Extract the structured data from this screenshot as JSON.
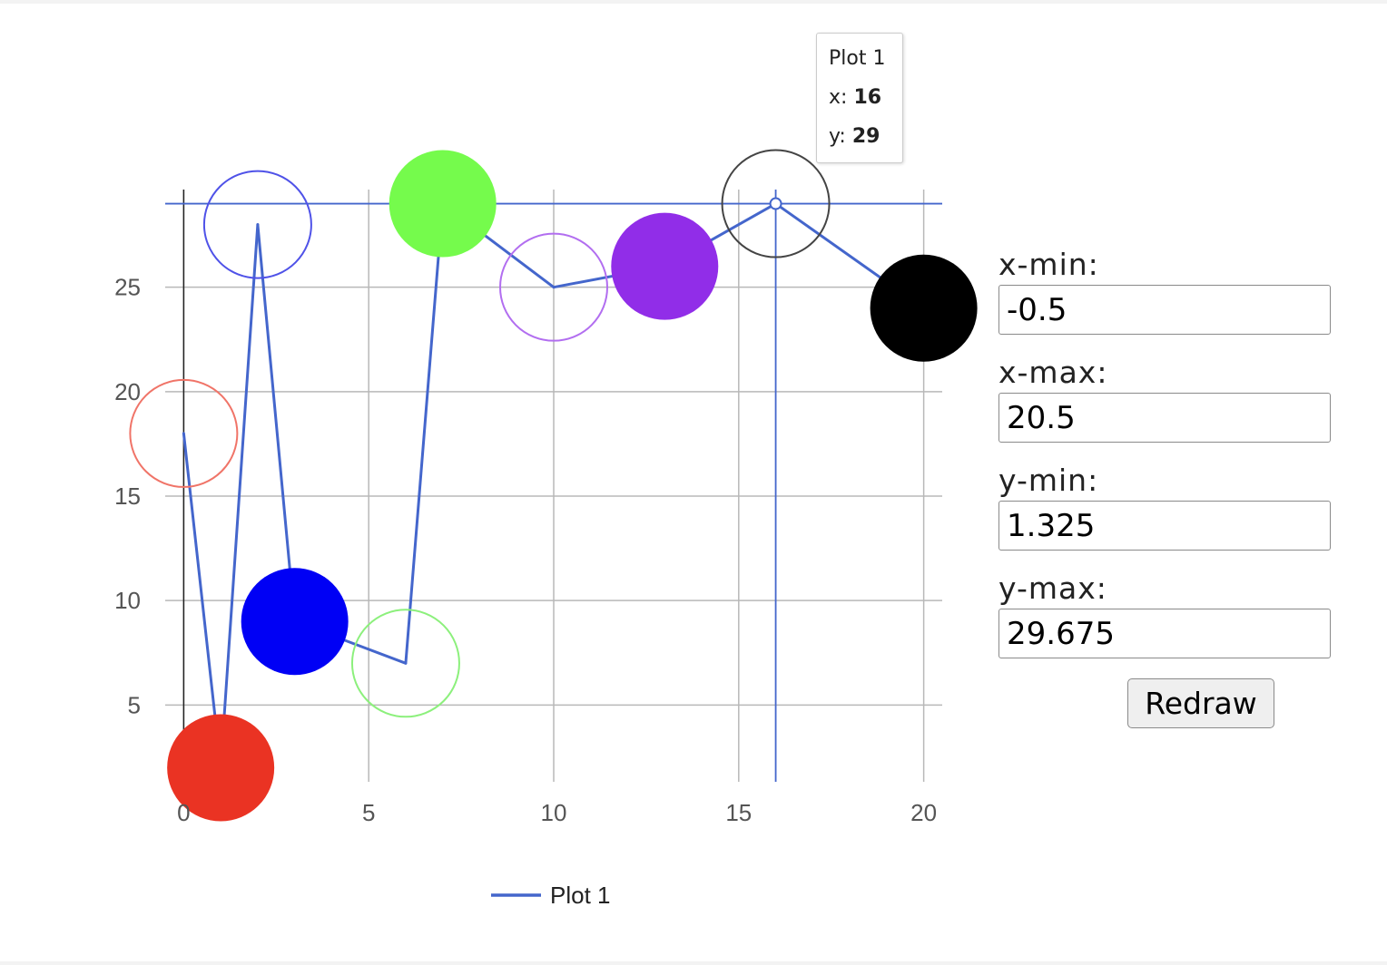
{
  "chart_data": {
    "type": "scatter",
    "xlim": [
      -0.5,
      20.5
    ],
    "ylim": [
      1.325,
      29.675
    ],
    "x_ticks": [
      0,
      5,
      10,
      15,
      20
    ],
    "y_ticks": [
      5,
      10,
      15,
      20,
      25
    ],
    "grid": true,
    "legend_position": "bottom",
    "series": [
      {
        "name": "Plot 1",
        "color": "#4466cc",
        "x": [
          0,
          1,
          2,
          3,
          6,
          7,
          10,
          13,
          16,
          20
        ],
        "y": [
          18,
          2,
          28,
          9,
          7,
          29,
          25,
          26,
          29,
          24
        ]
      }
    ],
    "markers": [
      {
        "x": 0,
        "y": 18,
        "color": "#f07468",
        "filled": false
      },
      {
        "x": 1,
        "y": 2,
        "color": "#ea3323",
        "filled": true
      },
      {
        "x": 2,
        "y": 28,
        "color": "#4f52e8",
        "filled": false
      },
      {
        "x": 3,
        "y": 9,
        "color": "#0000f5",
        "filled": true
      },
      {
        "x": 6,
        "y": 7,
        "color": "#8cf07c",
        "filled": false
      },
      {
        "x": 7,
        "y": 29,
        "color": "#75fb4c",
        "filled": true
      },
      {
        "x": 10,
        "y": 25,
        "color": "#b26ef0",
        "filled": false
      },
      {
        "x": 13,
        "y": 26,
        "color": "#912de8",
        "filled": true
      },
      {
        "x": 16,
        "y": 29,
        "color": "#444444",
        "filled": false
      },
      {
        "x": 20,
        "y": 24,
        "color": "#000000",
        "filled": true
      }
    ],
    "crosshair": {
      "x": 16,
      "y": 29
    }
  },
  "tooltip": {
    "series_name": "Plot 1",
    "x_label": "x:",
    "x_value": "16",
    "y_label": "y:",
    "y_value": "29"
  },
  "controls": {
    "xmin_label": "x-min:",
    "xmin_value": "-0.5",
    "xmax_label": "x-max:",
    "xmax_value": "20.5",
    "ymin_label": "y-min:",
    "ymin_value": "1.325",
    "ymax_label": "y-max:",
    "ymax_value": "29.675",
    "redraw_label": "Redraw"
  }
}
